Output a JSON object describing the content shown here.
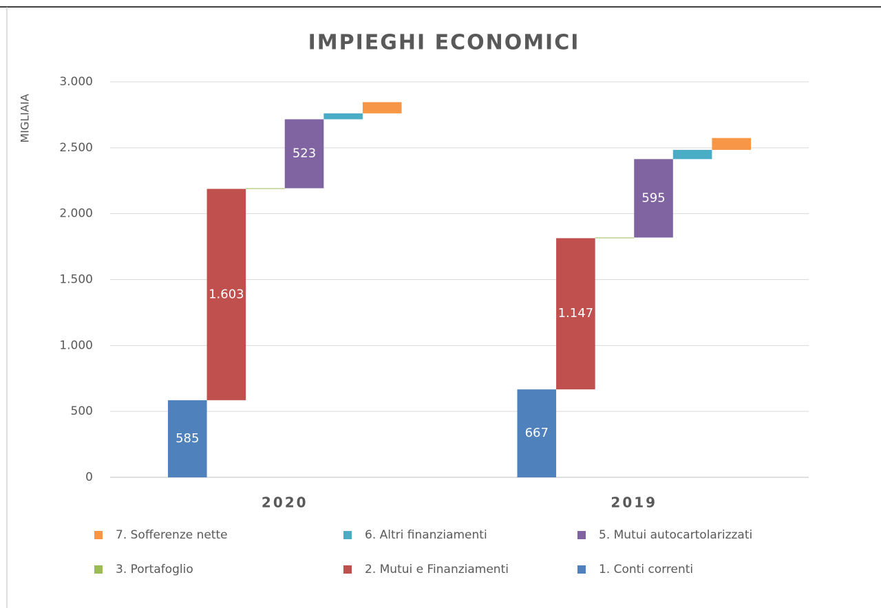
{
  "chart_data": {
    "type": "waterfall",
    "title": "IMPIEGHI ECONOMICI",
    "y_label": "MIGLIAIA",
    "categories": [
      "2020",
      "2019"
    ],
    "series": [
      {
        "name": "1. Conti correnti",
        "color": "#4f81bd",
        "values": [
          585,
          667
        ],
        "value_labels": [
          "585",
          "667"
        ]
      },
      {
        "name": "2. Mutui e Finanziamenti",
        "color": "#c0504d",
        "values": [
          1603,
          1147
        ],
        "value_labels": [
          "1.603",
          "1.147"
        ]
      },
      {
        "name": "3. Portafoglio",
        "color": "#9bbb59",
        "values": [
          5,
          5
        ],
        "value_labels": [
          null,
          null
        ]
      },
      {
        "name": "5. Mutui autocartolarizzati",
        "color": "#8064a2",
        "values": [
          523,
          595
        ],
        "value_labels": [
          "523",
          "595"
        ]
      },
      {
        "name": "6. Altri finanziamenti",
        "color": "#4bacc6",
        "values": [
          45,
          70
        ],
        "value_labels": [
          null,
          null
        ]
      },
      {
        "name": "7. Sofferenze nette",
        "color": "#f79646",
        "values": [
          85,
          90
        ],
        "value_labels": [
          null,
          null
        ]
      }
    ],
    "ylim": [
      0,
      3000
    ],
    "yticks": [
      0,
      500,
      {
        "value": 1000,
        "label": "1.000"
      },
      {
        "value": 1500,
        "label": "1.500"
      },
      {
        "value": 2000,
        "label": "2.000"
      },
      {
        "value": 2500,
        "label": "2.500"
      },
      {
        "value": 3000,
        "label": "3.000"
      }
    ],
    "grid": true
  }
}
